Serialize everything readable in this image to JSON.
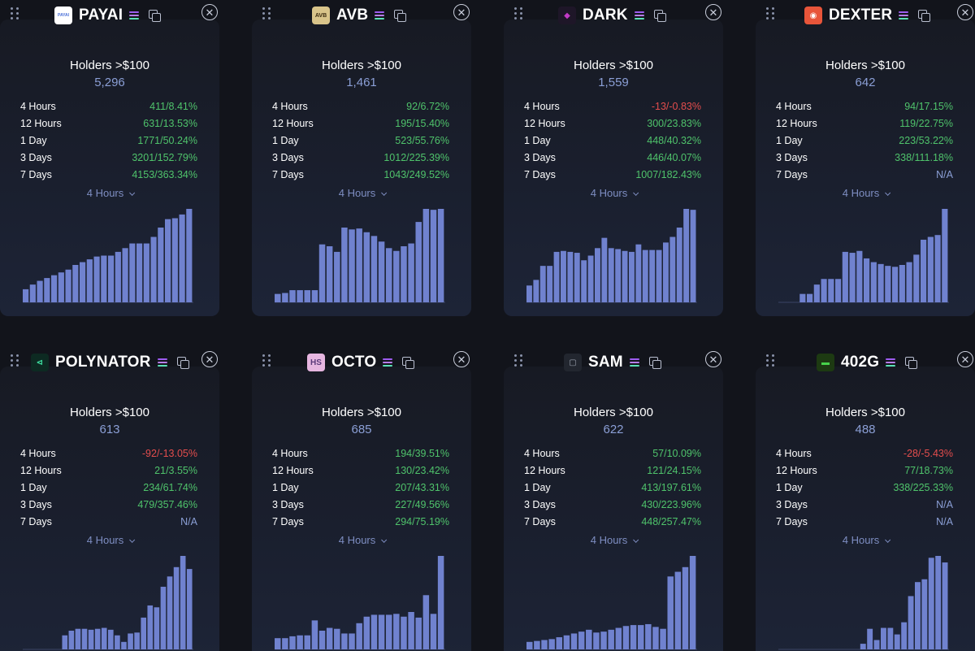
{
  "common": {
    "holders_label": "Holders >$100",
    "period_selected": "4 Hours",
    "period_labels": [
      "4 Hours",
      "12 Hours",
      "1 Day",
      "3 Days",
      "7 Days"
    ]
  },
  "colors": {
    "positive": "#4fc36b",
    "negative": "#e34d4d",
    "na": "#8b9fd6",
    "bar": "#7082cf",
    "baseline": "#3a4466"
  },
  "tokens": [
    {
      "name": "PAYAI",
      "logo_text": "PAYAI",
      "logo_bg": "#ffffff",
      "logo_color": "#4a6fd8",
      "holders": "5,296",
      "stats": [
        "411/8.41%",
        "631/13.53%",
        "1771/50.24%",
        "3201/152.79%",
        "4153/363.34%"
      ],
      "chart_data": {
        "type": "bar",
        "values": [
          14,
          19,
          23,
          26,
          29,
          32,
          35,
          40,
          43,
          46,
          49,
          50,
          50,
          54,
          58,
          63,
          63,
          63,
          70,
          80,
          89,
          90,
          94,
          100
        ]
      }
    },
    {
      "name": "AVB",
      "logo_text": "AVB",
      "logo_bg": "#d9c48a",
      "logo_color": "#3a2a10",
      "holders": "1,461",
      "stats": [
        "92/6.72%",
        "195/15.40%",
        "523/55.76%",
        "1012/225.39%",
        "1043/249.52%"
      ],
      "chart_data": {
        "type": "bar",
        "values": [
          9,
          10,
          13,
          13,
          13,
          13,
          62,
          60,
          54,
          80,
          78,
          79,
          75,
          71,
          65,
          58,
          55,
          60,
          63,
          86,
          100,
          99,
          100
        ]
      }
    },
    {
      "name": "DARK",
      "logo_text": "◆",
      "logo_bg": "#1e1628",
      "logo_color": "#c33ac7",
      "holders": "1,559",
      "stats": [
        "-13/-0.83%",
        "300/23.83%",
        "448/40.32%",
        "446/40.07%",
        "1007/182.43%"
      ],
      "chart_data": {
        "type": "bar",
        "values": [
          18,
          24,
          39,
          39,
          54,
          55,
          54,
          53,
          45,
          50,
          58,
          69,
          58,
          57,
          55,
          54,
          62,
          56,
          56,
          56,
          64,
          70,
          80,
          100,
          99
        ]
      }
    },
    {
      "name": "DEXTER",
      "logo_text": "◉",
      "logo_bg": "#e8553a",
      "logo_color": "#ffffff",
      "holders": "642",
      "stats": [
        "94/17.15%",
        "119/22.75%",
        "223/53.22%",
        "338/111.18%",
        "N/A"
      ],
      "chart_data": {
        "type": "bar",
        "values": [
          0,
          0,
          0,
          9,
          9,
          19,
          25,
          25,
          25,
          54,
          53,
          55,
          47,
          43,
          41,
          39,
          38,
          40,
          43,
          51,
          67,
          70,
          72,
          100
        ]
      }
    },
    {
      "name": "POLYNATOR",
      "logo_text": "⊲",
      "logo_bg": "#0d2a22",
      "logo_color": "#3fe0a2",
      "holders": "613",
      "stats": [
        "-92/-13.05%",
        "21/3.55%",
        "234/61.74%",
        "479/357.46%",
        "N/A"
      ],
      "chart_data": {
        "type": "bar",
        "values": [
          0,
          0,
          0,
          0,
          0,
          0,
          15,
          20,
          22,
          22,
          21,
          22,
          23,
          21,
          15,
          8,
          17,
          18,
          34,
          47,
          45,
          67,
          78,
          88,
          100,
          86
        ]
      }
    },
    {
      "name": "OCTO",
      "logo_text": "HS",
      "logo_bg": "#e6b6e0",
      "logo_color": "#5a3a7a",
      "holders": "685",
      "stats": [
        "194/39.51%",
        "130/23.42%",
        "207/43.31%",
        "227/49.56%",
        "294/75.19%"
      ],
      "chart_data": {
        "type": "bar",
        "values": [
          12,
          12,
          14,
          15,
          15,
          31,
          20,
          23,
          22,
          17,
          17,
          28,
          35,
          37,
          37,
          37,
          38,
          35,
          40,
          34,
          58,
          38,
          100
        ]
      }
    },
    {
      "name": "SAM",
      "logo_text": "▢",
      "logo_bg": "#22262f",
      "logo_color": "#9aa0ad",
      "holders": "622",
      "stats": [
        "57/10.09%",
        "121/24.15%",
        "413/197.61%",
        "430/223.96%",
        "448/257.47%"
      ],
      "chart_data": {
        "type": "bar",
        "values": [
          8,
          9,
          10,
          11,
          13,
          15,
          17,
          19,
          21,
          18,
          19,
          21,
          23,
          25,
          26,
          26,
          27,
          24,
          22,
          78,
          83,
          88,
          100
        ]
      }
    },
    {
      "name": "402G",
      "logo_text": "▬",
      "logo_bg": "#1d3a12",
      "logo_color": "#47d34a",
      "holders": "488",
      "stats": [
        "-28/-5.43%",
        "77/18.73%",
        "338/225.33%",
        "N/A",
        "N/A"
      ],
      "chart_data": {
        "type": "bar",
        "values": [
          0,
          0,
          0,
          0,
          0,
          0,
          0,
          0,
          0,
          0,
          0,
          0,
          6,
          22,
          10,
          23,
          23,
          16,
          29,
          57,
          72,
          75,
          98,
          100,
          93
        ]
      }
    }
  ]
}
